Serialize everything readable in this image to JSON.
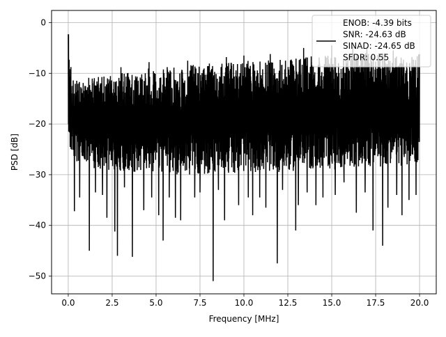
{
  "chart_data": {
    "type": "line",
    "xlabel": "Frequency [MHz]",
    "ylabel": "PSD [dB]",
    "xlim": [
      -0.95,
      20.95
    ],
    "ylim": [
      -53.5,
      2.4
    ],
    "grid": true,
    "legend_placement": "top-right",
    "legend": {
      "lines": [
        "ENOB: -4.39 bits",
        "SNR: -24.63 dB",
        "SINAD: -24.65 dB",
        "SFDR: 0.55"
      ]
    },
    "x_ticks": [
      0.0,
      2.5,
      5.0,
      7.5,
      10.0,
      12.5,
      15.0,
      17.5,
      20.0
    ],
    "x_tick_labels": [
      "0.0",
      "2.5",
      "5.0",
      "7.5",
      "10.0",
      "12.5",
      "15.0",
      "17.5",
      "20.0"
    ],
    "y_ticks": [
      0,
      -10,
      -20,
      -30,
      -40,
      -50
    ],
    "y_tick_labels": [
      "0",
      "−10",
      "−20",
      "−30",
      "−40",
      "−50"
    ],
    "series": [
      {
        "color": "#000000",
        "envelope_upper": [
          [
            0.0,
            -2.3
          ],
          [
            0.1,
            -7.5
          ],
          [
            0.3,
            -11.0
          ],
          [
            0.5,
            -11.5
          ],
          [
            1.0,
            -10.8
          ],
          [
            1.5,
            -10.5
          ],
          [
            2.0,
            -10.5
          ],
          [
            2.5,
            -10.2
          ],
          [
            3.0,
            -10.0
          ],
          [
            3.5,
            -9.8
          ],
          [
            4.0,
            -9.5
          ],
          [
            4.5,
            -9.0
          ],
          [
            5.0,
            -9.0
          ],
          [
            6.0,
            -8.5
          ],
          [
            7.0,
            -8.2
          ],
          [
            8.0,
            -8.0
          ],
          [
            9.0,
            -7.8
          ],
          [
            10.0,
            -7.5
          ],
          [
            11.0,
            -7.5
          ],
          [
            12.0,
            -7.2
          ],
          [
            13.0,
            -7.0
          ],
          [
            14.0,
            -6.5
          ],
          [
            15.0,
            -6.5
          ],
          [
            16.0,
            -6.2
          ],
          [
            17.0,
            -6.0
          ],
          [
            18.0,
            -6.0
          ],
          [
            19.0,
            -5.8
          ],
          [
            20.0,
            -6.0
          ]
        ],
        "envelope_lower": [
          [
            0.0,
            -25.0
          ],
          [
            0.5,
            -28.0
          ],
          [
            1.0,
            -28.5
          ],
          [
            2.0,
            -29.0
          ],
          [
            4.0,
            -29.5
          ],
          [
            6.0,
            -30.0
          ],
          [
            8.0,
            -30.0
          ],
          [
            10.0,
            -29.5
          ],
          [
            12.0,
            -29.5
          ],
          [
            14.0,
            -29.0
          ],
          [
            16.0,
            -29.0
          ],
          [
            18.0,
            -28.5
          ],
          [
            20.0,
            -28.0
          ]
        ],
        "dips": [
          [
            0.35,
            -37.2
          ],
          [
            0.65,
            -34.5
          ],
          [
            1.2,
            -45.0
          ],
          [
            1.55,
            -33.5
          ],
          [
            1.95,
            -34.0
          ],
          [
            2.2,
            -38.5
          ],
          [
            2.65,
            -41.2
          ],
          [
            2.8,
            -46.0
          ],
          [
            3.2,
            -32.5
          ],
          [
            3.65,
            -46.2
          ],
          [
            4.3,
            -37.0
          ],
          [
            4.75,
            -34.5
          ],
          [
            5.15,
            -38.0
          ],
          [
            5.4,
            -43.0
          ],
          [
            5.75,
            -34.5
          ],
          [
            6.1,
            -38.5
          ],
          [
            6.4,
            -39.0
          ],
          [
            7.2,
            -34.5
          ],
          [
            7.5,
            -33.5
          ],
          [
            8.25,
            -51.0
          ],
          [
            8.55,
            -33.0
          ],
          [
            8.9,
            -39.0
          ],
          [
            9.7,
            -36.0
          ],
          [
            10.25,
            -34.5
          ],
          [
            10.5,
            -38.0
          ],
          [
            10.9,
            -34.5
          ],
          [
            11.25,
            -36.5
          ],
          [
            11.9,
            -47.5
          ],
          [
            12.2,
            -33.0
          ],
          [
            12.95,
            -41.0
          ],
          [
            13.1,
            -36.0
          ],
          [
            13.6,
            -33.5
          ],
          [
            14.1,
            -36.0
          ],
          [
            14.5,
            -34.5
          ],
          [
            15.2,
            -34.0
          ],
          [
            15.7,
            -31.5
          ],
          [
            16.2,
            -36.5
          ],
          [
            16.4,
            -37.5
          ],
          [
            16.9,
            -33.5
          ],
          [
            17.35,
            -41.0
          ],
          [
            17.9,
            -44.0
          ],
          [
            18.2,
            -36.5
          ],
          [
            18.7,
            -34.0
          ],
          [
            19.0,
            -38.0
          ],
          [
            19.4,
            -35.0
          ],
          [
            19.8,
            -34.0
          ]
        ],
        "peaks": [
          [
            0.02,
            -2.3
          ],
          [
            3.0,
            -8.8
          ],
          [
            4.6,
            -7.8
          ],
          [
            6.8,
            -7.5
          ],
          [
            9.0,
            -6.8
          ],
          [
            10.0,
            -6.5
          ],
          [
            11.5,
            -6.2
          ],
          [
            13.4,
            -5.0
          ],
          [
            15.0,
            -4.5
          ],
          [
            16.2,
            -4.8
          ],
          [
            17.0,
            -5.0
          ],
          [
            18.5,
            -5.5
          ]
        ]
      }
    ]
  }
}
